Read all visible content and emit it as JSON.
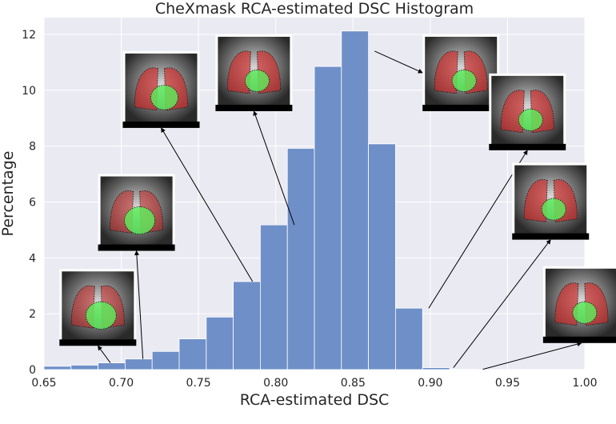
{
  "chart_data": {
    "type": "bar",
    "title": "CheXmask RCA-estimated DSC Histogram",
    "xlabel": "RCA-estimated DSC",
    "ylabel": "Percentage",
    "xlim": [
      0.65,
      1.0
    ],
    "ylim": [
      0,
      12.6
    ],
    "xticks": [
      "0.65",
      "0.70",
      "0.75",
      "0.80",
      "0.85",
      "0.90",
      "0.95",
      "1.00"
    ],
    "yticks": [
      "0",
      "2",
      "4",
      "6",
      "8",
      "10",
      "12"
    ],
    "bin_width": 0.0175,
    "bins_start": [
      0.65,
      0.6675,
      0.685,
      0.7025,
      0.72,
      0.7375,
      0.755,
      0.7725,
      0.79,
      0.8075,
      0.825,
      0.8425,
      0.86,
      0.8775,
      0.895,
      0.9125
    ],
    "values": [
      0.12,
      0.16,
      0.24,
      0.38,
      0.65,
      1.1,
      1.88,
      3.15,
      5.18,
      7.92,
      10.85,
      12.12,
      8.08,
      2.2,
      0.07,
      0.01
    ],
    "grid": true,
    "colors": {
      "bar": "#6f8fc8",
      "background": "#eaeaf2",
      "grid": "#ffffff"
    },
    "annotations": [
      {
        "thumb_x": 0.66,
        "thumb_y": 3.6,
        "target_x": 0.693,
        "target_y": 0.24,
        "type": "low"
      },
      {
        "thumb_x": 0.685,
        "thumb_y": 7.0,
        "target_x": 0.714,
        "target_y": 0.38,
        "type": "low"
      },
      {
        "thumb_x": 0.701,
        "thumb_y": 11.4,
        "target_x": 0.785,
        "target_y": 3.15,
        "type": "mid"
      },
      {
        "thumb_x": 0.761,
        "thumb_y": 12.0,
        "target_x": 0.812,
        "target_y": 5.18,
        "type": "high"
      },
      {
        "thumb_x": 0.895,
        "thumb_y": 12.0,
        "target_x": 0.864,
        "target_y": 11.4,
        "type": "high"
      },
      {
        "thumb_x": 0.938,
        "thumb_y": 10.6,
        "target_x": 0.899,
        "target_y": 2.2,
        "type": "high"
      },
      {
        "thumb_x": 0.953,
        "thumb_y": 7.4,
        "target_x": 0.915,
        "target_y": 0.07,
        "type": "high"
      },
      {
        "thumb_x": 0.973,
        "thumb_y": 3.7,
        "target_x": 0.934,
        "target_y": 0.01,
        "type": "high"
      }
    ]
  }
}
